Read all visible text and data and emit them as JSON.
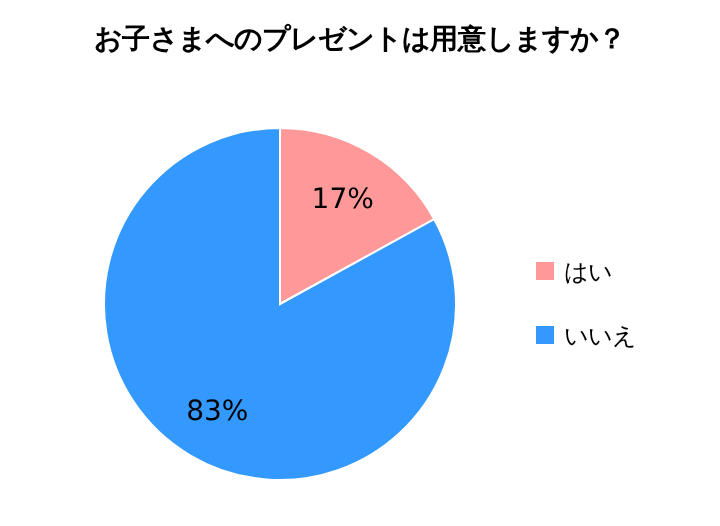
{
  "chart_data": {
    "type": "pie",
    "title": "お子さまへのプレゼントは用意しますか？",
    "categories": [
      "はい",
      "いいえ"
    ],
    "values": [
      17,
      83
    ],
    "colors": [
      "#ff9999",
      "#3399ff"
    ],
    "value_labels": [
      "17%",
      "83%"
    ],
    "legend": "right"
  }
}
